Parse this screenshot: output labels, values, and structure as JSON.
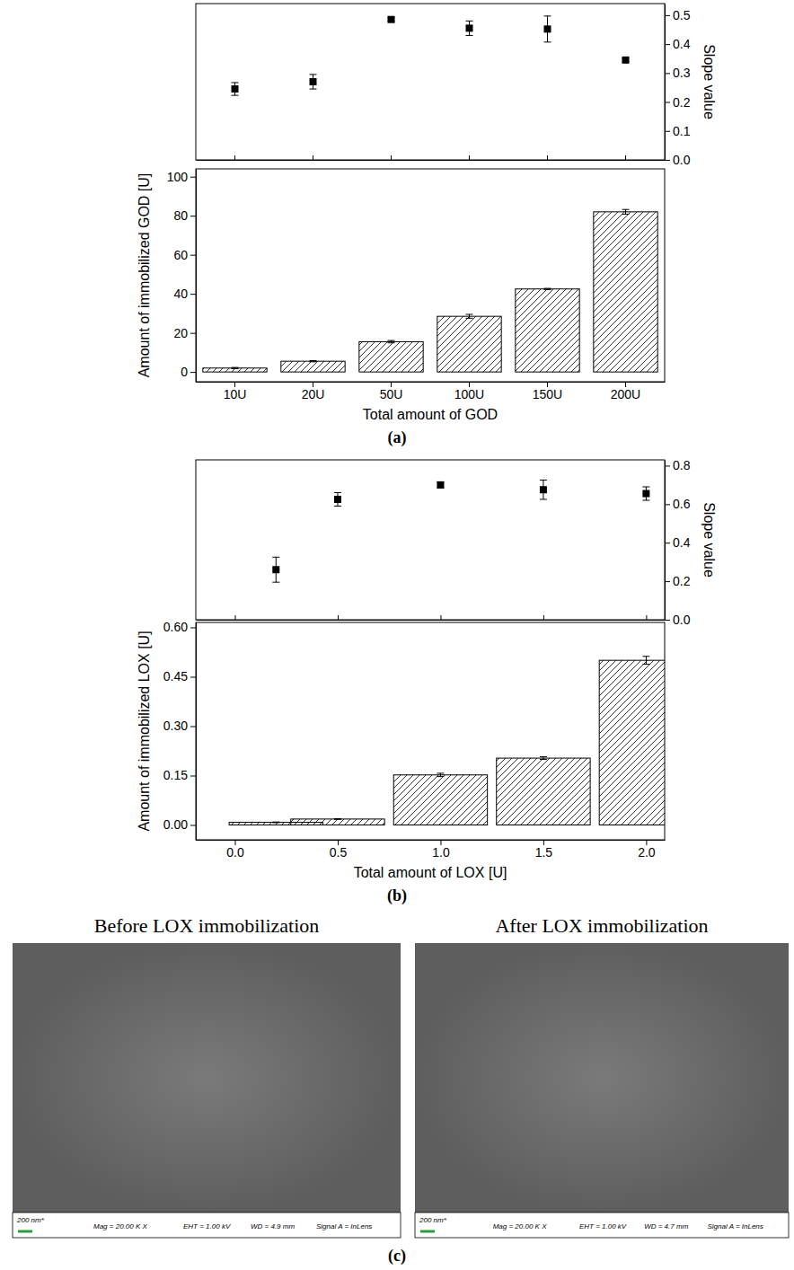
{
  "chart_data": [
    {
      "type": "scatter",
      "categories": [
        null,
        null,
        null,
        null,
        null,
        null
      ],
      "values": [
        0.245,
        0.27,
        0.485,
        0.455,
        0.452,
        0.345
      ],
      "errors": [
        0.022,
        0.025,
        0.006,
        0.025,
        0.045,
        0.006
      ],
      "y2_label": "Slope value",
      "y2lim": [
        0,
        0.54
      ],
      "y2ticks": [
        {
          "value": 0,
          "label": "0.0"
        },
        0.1,
        0.2,
        0.3,
        0.4,
        0.5
      ],
      "marker": "square",
      "color": "#000000",
      "tick_labels": "y"
    },
    {
      "type": "bar",
      "panel_label": "(a)",
      "categories": [
        "10U",
        "20U",
        "50U",
        "100U",
        "150U",
        "200U"
      ],
      "values": [
        2,
        5.5,
        15.5,
        28.5,
        42.5,
        82
      ],
      "errors": [
        0.3,
        0.3,
        0.6,
        1.0,
        0.3,
        1.2
      ],
      "x_label": "Total amount of GOD",
      "y_label": "Amount of immobilized GOD [U]",
      "ylim": [
        -5,
        104
      ],
      "yticks": [
        0,
        20,
        40,
        60,
        80,
        100
      ],
      "color": "#000000"
    },
    {
      "type": "scatter",
      "x": [
        0.2,
        0.5,
        1,
        1.5,
        2
      ],
      "values": [
        0.26,
        0.625,
        0.7,
        0.675,
        0.655
      ],
      "errors": [
        0.065,
        0.035,
        0.015,
        0.05,
        0.035
      ],
      "y2_label": "Slope value",
      "xlim": [
        -0.19,
        2.09
      ],
      "xticks": [
        0,
        0.5,
        1,
        1.5,
        2
      ],
      "y2lim": [
        0,
        0.83
      ],
      "y2ticks": [
        {
          "value": 0,
          "label": "0.0"
        },
        0.2,
        0.4,
        0.6,
        0.8
      ],
      "marker": "square",
      "color": "#000000",
      "tick_labels": "y"
    },
    {
      "type": "bar",
      "panel_label": "(b)",
      "x": [
        0.2,
        0.5,
        1,
        1.5,
        2
      ],
      "values": [
        0.008,
        0.018,
        0.152,
        0.203,
        0.5
      ],
      "errors": [
        0.001,
        0.001,
        0.005,
        0.004,
        0.012
      ],
      "x_label": "Total amount of LOX [U]",
      "y_label": "Amount of immobilized LOX [U]",
      "xlim": [
        -0.19,
        2.09
      ],
      "xticks": [
        {
          "value": 0,
          "label": "0.0"
        },
        0.5,
        {
          "value": 1,
          "label": "1.0"
        },
        1.5,
        {
          "value": 2,
          "label": "2.0"
        }
      ],
      "ylim": [
        -0.045,
        0.615
      ],
      "yticks": [
        {
          "value": 0,
          "label": "0.00"
        },
        0.15,
        {
          "value": 0.3,
          "label": "0.30"
        },
        0.45,
        {
          "value": 0.6,
          "label": "0.60"
        }
      ],
      "color": "#000000"
    }
  ],
  "images": {
    "panel_label": "(c)",
    "items": [
      {
        "title": "Before LOX immobilization",
        "scale_bar": "200 nm*",
        "info": [
          "Mag = 20.00 K X",
          "EHT = 1.00 kV",
          "WD = 4.9 mm",
          "Signal A = InLens"
        ]
      },
      {
        "title": "After LOX immobilization",
        "scale_bar": "200 nm*",
        "info": [
          "Mag = 20.00 K X",
          "EHT = 1.00 kV",
          "WD = 4.7 mm",
          "Signal A = InLens"
        ]
      }
    ]
  }
}
